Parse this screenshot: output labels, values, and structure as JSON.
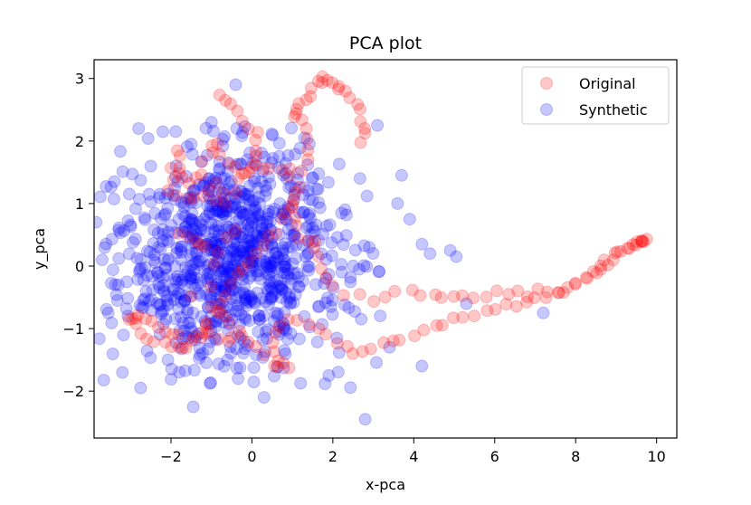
{
  "chart_data": {
    "type": "scatter",
    "title": "PCA plot",
    "xlabel": "x-pca",
    "ylabel": "y_pca",
    "xlim": [
      -3.9,
      10.5
    ],
    "ylim": [
      -2.75,
      3.3
    ],
    "xticks": [
      -2,
      0,
      2,
      4,
      6,
      8,
      10
    ],
    "yticks": [
      -2,
      -1,
      0,
      1,
      2,
      3
    ],
    "grid": false,
    "legend_position": "top-right",
    "series": [
      {
        "name": "Original",
        "color": "#ff0000",
        "alpha": 0.22,
        "point_count": 320,
        "path_points": [
          [
            -0.8,
            2.75
          ],
          [
            -0.5,
            2.6
          ],
          [
            -0.2,
            2.35
          ],
          [
            0.1,
            2.1
          ],
          [
            0.15,
            1.85
          ],
          [
            0.05,
            1.6
          ],
          [
            -0.2,
            1.5
          ],
          [
            -0.6,
            1.7
          ],
          [
            -0.9,
            1.95
          ],
          [
            -1.05,
            1.8
          ],
          [
            -1.2,
            1.45
          ],
          [
            -1.6,
            1.3
          ],
          [
            -1.9,
            1.4
          ],
          [
            -1.7,
            1.6
          ],
          [
            -1.9,
            1.9
          ],
          [
            -2.1,
            1.2
          ],
          [
            -1.6,
            1.05
          ],
          [
            -1.2,
            1.15
          ],
          [
            -0.9,
            1.3
          ],
          [
            -0.6,
            1.05
          ],
          [
            -0.3,
            1.35
          ],
          [
            0.0,
            1.6
          ],
          [
            0.5,
            1.55
          ],
          [
            1.0,
            1.6
          ],
          [
            1.0,
            1.2
          ],
          [
            1.0,
            0.75
          ],
          [
            1.2,
            0.5
          ],
          [
            1.55,
            0.38
          ],
          [
            1.6,
            0.15
          ],
          [
            1.8,
            -0.2
          ],
          [
            2.3,
            -0.45
          ],
          [
            3.0,
            -0.55
          ],
          [
            3.6,
            -0.45
          ],
          [
            4.2,
            -0.45
          ],
          [
            4.7,
            -0.5
          ],
          [
            5.2,
            -0.48
          ],
          [
            5.8,
            -0.5
          ],
          [
            6.3,
            -0.45
          ],
          [
            6.8,
            -0.4
          ],
          [
            7.3,
            -0.42
          ],
          [
            7.8,
            -0.35
          ],
          [
            8.2,
            -0.2
          ],
          [
            8.6,
            0.0
          ],
          [
            9.0,
            0.18
          ],
          [
            9.3,
            0.3
          ],
          [
            9.55,
            0.38
          ],
          [
            9.75,
            0.42
          ],
          [
            9.7,
            0.4
          ],
          [
            9.5,
            0.35
          ],
          [
            9.15,
            0.25
          ],
          [
            8.8,
            0.05
          ],
          [
            8.45,
            -0.12
          ],
          [
            8.0,
            -0.3
          ],
          [
            7.5,
            -0.45
          ],
          [
            7.0,
            -0.52
          ],
          [
            6.5,
            -0.62
          ],
          [
            6.0,
            -0.7
          ],
          [
            5.5,
            -0.8
          ],
          [
            5.0,
            -0.88
          ],
          [
            4.5,
            -1.0
          ],
          [
            4.0,
            -1.1
          ],
          [
            3.5,
            -1.22
          ],
          [
            3.0,
            -1.3
          ],
          [
            2.5,
            -1.35
          ],
          [
            2.1,
            -1.25
          ],
          [
            1.6,
            -1.0
          ],
          [
            1.1,
            -0.85
          ],
          [
            0.7,
            -0.9
          ],
          [
            0.5,
            -1.2
          ],
          [
            0.6,
            -1.5
          ],
          [
            0.9,
            -1.6
          ],
          [
            0.5,
            -1.55
          ],
          [
            0.1,
            -1.3
          ],
          [
            -0.3,
            -1.1
          ],
          [
            -0.6,
            -1.2
          ],
          [
            -0.95,
            -1.05
          ],
          [
            -1.3,
            -1.15
          ],
          [
            -1.65,
            -1.3
          ],
          [
            -2.05,
            -1.25
          ],
          [
            -2.4,
            -1.2
          ],
          [
            -2.8,
            -1.05
          ],
          [
            -3.05,
            -0.85
          ],
          [
            -2.9,
            -0.75
          ],
          [
            -2.6,
            -0.8
          ],
          [
            -2.3,
            -0.95
          ],
          [
            -2.0,
            -1.1
          ],
          [
            -1.6,
            -1.2
          ],
          [
            -1.3,
            -1.05
          ],
          [
            -1.05,
            -0.85
          ],
          [
            -0.8,
            -0.6
          ],
          [
            -0.5,
            -0.3
          ],
          [
            -0.2,
            -0.1
          ],
          [
            0.1,
            0.2
          ],
          [
            0.4,
            0.45
          ],
          [
            0.7,
            0.7
          ],
          [
            1.0,
            0.95
          ],
          [
            1.25,
            1.3
          ],
          [
            1.35,
            1.7
          ],
          [
            1.45,
            2.05
          ],
          [
            1.2,
            2.35
          ],
          [
            1.0,
            2.45
          ],
          [
            1.2,
            2.55
          ],
          [
            1.45,
            2.7
          ],
          [
            1.6,
            2.92
          ],
          [
            1.75,
            3.0
          ],
          [
            1.95,
            2.95
          ],
          [
            2.2,
            2.85
          ],
          [
            2.45,
            2.7
          ],
          [
            2.65,
            2.5
          ],
          [
            2.8,
            2.2
          ],
          [
            2.75,
            2.0
          ],
          [
            -1.0,
            -0.6
          ],
          [
            -0.7,
            -0.8
          ],
          [
            -0.4,
            -1.0
          ],
          [
            -1.4,
            0.4
          ],
          [
            -1.8,
            0.5
          ],
          [
            -0.8,
            0.2
          ],
          [
            -0.4,
            0.6
          ],
          [
            -1.5,
            -0.5
          ],
          [
            -0.9,
            1.05
          ]
        ]
      },
      {
        "name": "Synthetic",
        "color": "#0000ff",
        "alpha": 0.22,
        "point_count": 900,
        "center": [
          -0.6,
          0.15
        ],
        "spread": [
          1.35,
          0.85
        ],
        "outliers": [
          [
            -0.4,
            2.9
          ],
          [
            3.1,
            2.25
          ],
          [
            3.7,
            1.45
          ],
          [
            3.6,
            1.0
          ],
          [
            3.9,
            0.75
          ],
          [
            4.2,
            0.35
          ],
          [
            4.4,
            0.2
          ],
          [
            4.9,
            0.25
          ],
          [
            5.05,
            0.15
          ],
          [
            5.3,
            -0.6
          ],
          [
            7.2,
            -0.75
          ],
          [
            4.2,
            -1.6
          ],
          [
            3.4,
            -1.3
          ],
          [
            2.8,
            -2.45
          ],
          [
            -1.45,
            -2.25
          ],
          [
            0.3,
            -2.1
          ],
          [
            -2.75,
            -1.95
          ],
          [
            -3.2,
            -1.7
          ],
          [
            -3.55,
            -0.75
          ],
          [
            -3.85,
            0.7
          ],
          [
            -3.4,
            1.35
          ],
          [
            -2.8,
            2.2
          ],
          [
            -2.2,
            2.15
          ],
          [
            -1.5,
            1.95
          ],
          [
            -1.0,
            2.3
          ],
          [
            1.3,
            2.05
          ],
          [
            2.3,
            0.9
          ],
          [
            2.9,
            0.3
          ],
          [
            2.7,
            -0.85
          ],
          [
            1.9,
            -1.75
          ],
          [
            -3.7,
            0.1
          ],
          [
            -3.3,
            -0.3
          ],
          [
            2.1,
            -1.15
          ],
          [
            -2.5,
            1.6
          ]
        ]
      }
    ]
  }
}
